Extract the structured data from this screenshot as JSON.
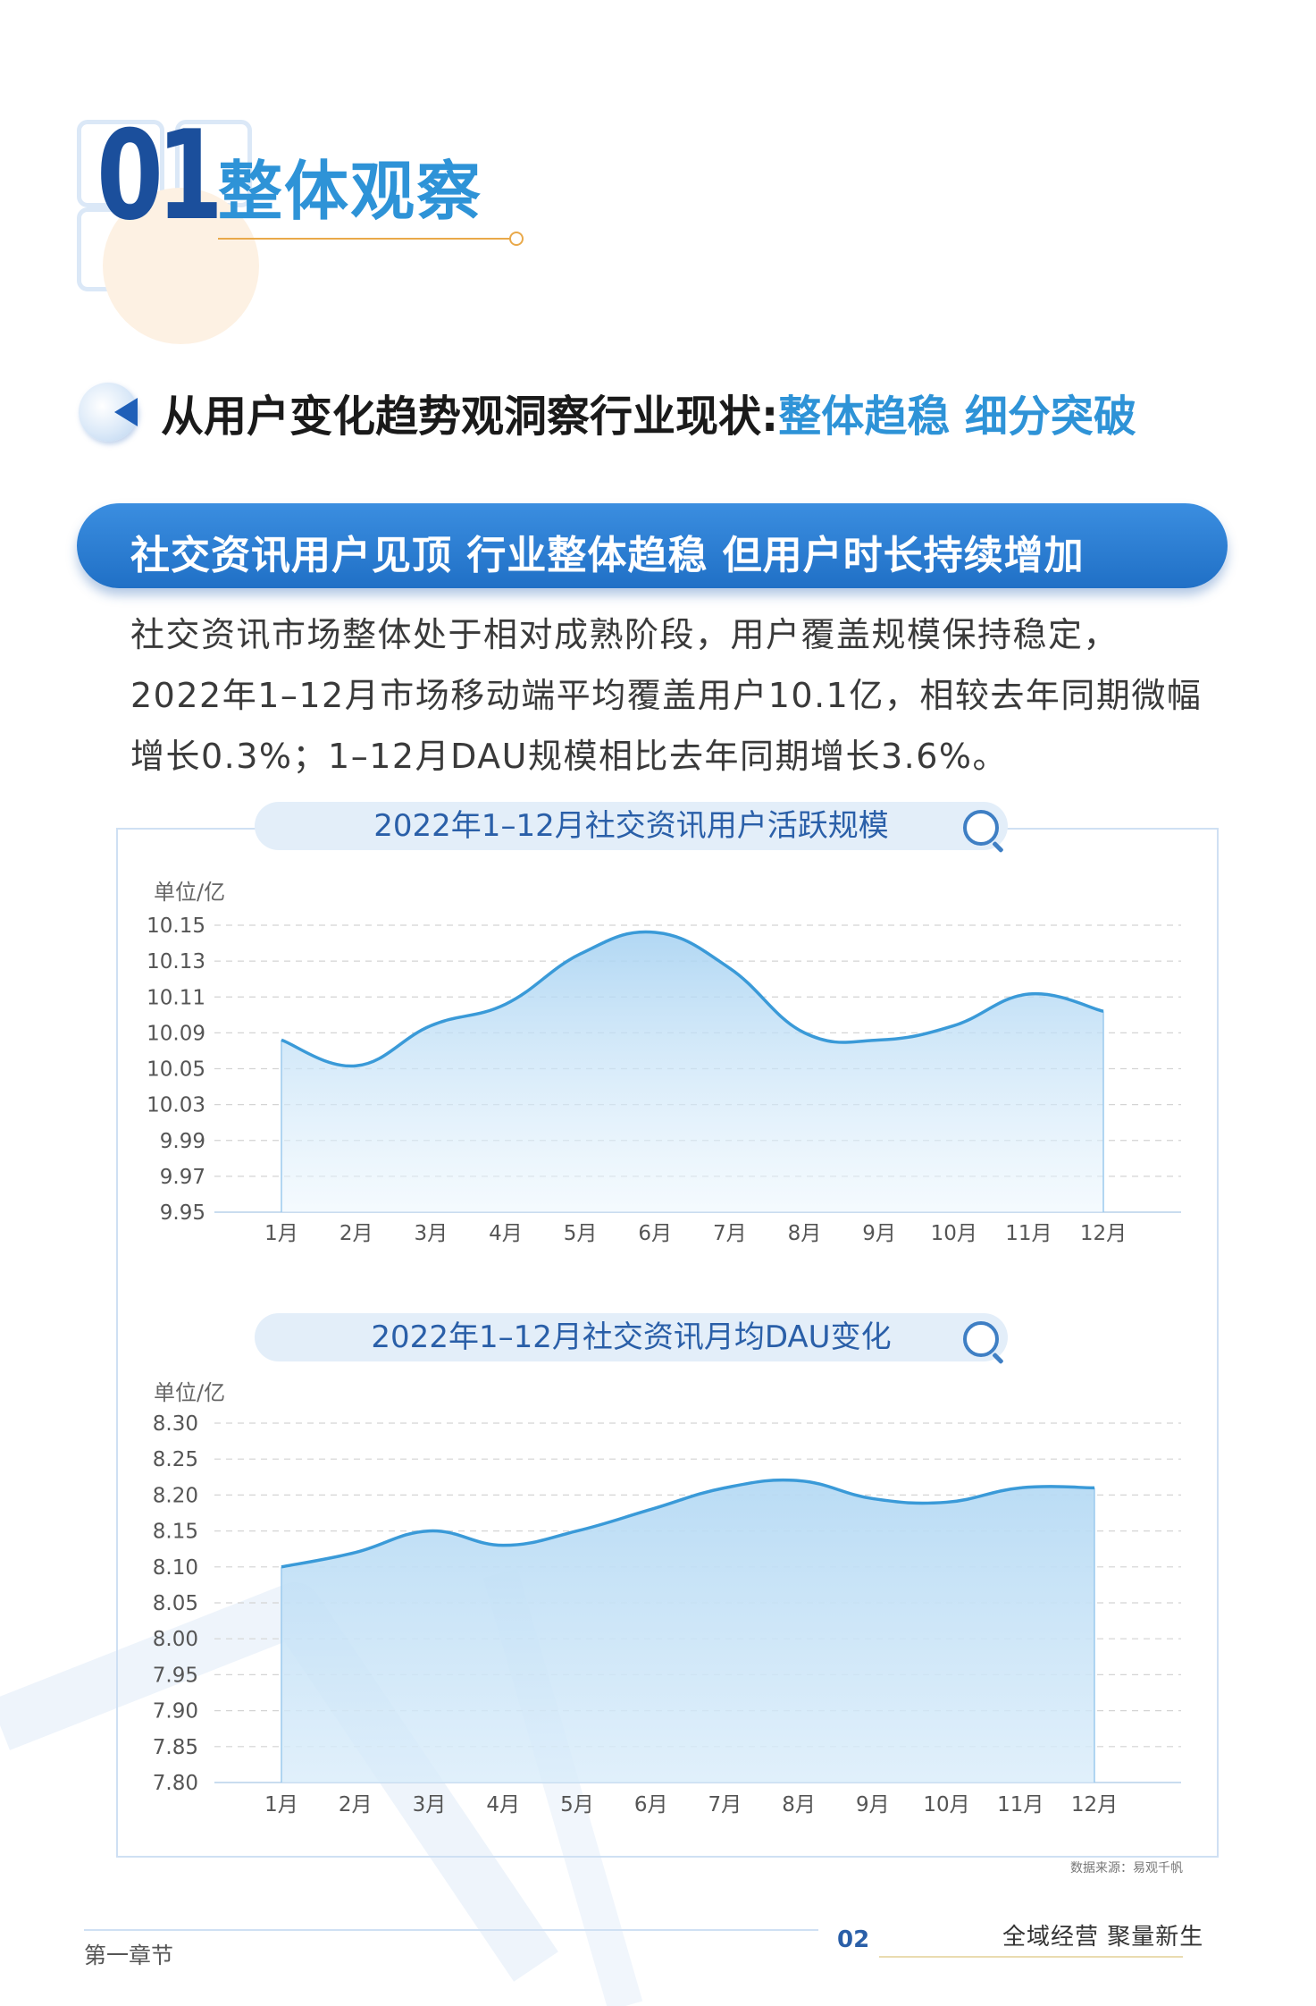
{
  "chapter": {
    "number": "01",
    "title": "整体观察"
  },
  "section": {
    "title_main": "从用户变化趋势观洞察行业现状:",
    "title_highlight": "整体趋稳 细分突破"
  },
  "banner": {
    "text": "社交资讯用户见顶 行业整体趋稳 但用户时长持续增加"
  },
  "paragraph": {
    "line1": "社交资讯市场整体处于相对成熟阶段，用户覆盖规模保持稳定，",
    "line2": "2022年1–12月市场移动端平均覆盖用户10.1亿，相较去年同期微幅",
    "line3": "增长0.3%；1–12月DAU规模相比去年同期增长3.6%。"
  },
  "colors": {
    "accent": "#2e93d7",
    "brand_dark": "#1b4f9c",
    "line": "#3a9ad8",
    "fill": "#cfe6f7"
  },
  "chart_data": [
    {
      "type": "area",
      "title": "2022年1–12月社交资讯用户活跃规模",
      "unit": "单位/亿",
      "categories": [
        "1月",
        "2月",
        "3月",
        "4月",
        "5月",
        "6月",
        "7月",
        "8月",
        "9月",
        "10月",
        "11月",
        "12月"
      ],
      "values": [
        10.07,
        10.052,
        10.08,
        10.095,
        10.13,
        10.145,
        10.12,
        10.075,
        10.07,
        10.08,
        10.102,
        10.09
      ],
      "ylim": [
        9.95,
        10.15
      ],
      "yticks": [
        "10.15",
        "10.13",
        "10.11",
        "10.09",
        "10.05",
        "10.03",
        "9.99",
        "9.97",
        "9.95"
      ],
      "grid": true
    },
    {
      "type": "area",
      "title": "2022年1–12月社交资讯月均DAU变化",
      "unit": "单位/亿",
      "categories": [
        "1月",
        "2月",
        "3月",
        "4月",
        "5月",
        "6月",
        "7月",
        "8月",
        "9月",
        "10月",
        "11月",
        "12月"
      ],
      "values": [
        8.1,
        8.12,
        8.15,
        8.13,
        8.15,
        8.18,
        8.21,
        8.22,
        8.195,
        8.19,
        8.21,
        8.21
      ],
      "ylim": [
        7.8,
        8.3
      ],
      "yticks": [
        "8.30",
        "8.25",
        "8.20",
        "8.15",
        "8.10",
        "8.05",
        "8.00",
        "7.95",
        "7.90",
        "7.85",
        "7.80"
      ],
      "grid": true
    }
  ],
  "source": "数据来源：易观千帆",
  "footer": {
    "left": "第一章节",
    "page": "02",
    "right": "全域经营 聚量新生"
  },
  "icons": {
    "search": "search-icon",
    "section": "play-badge-icon"
  }
}
